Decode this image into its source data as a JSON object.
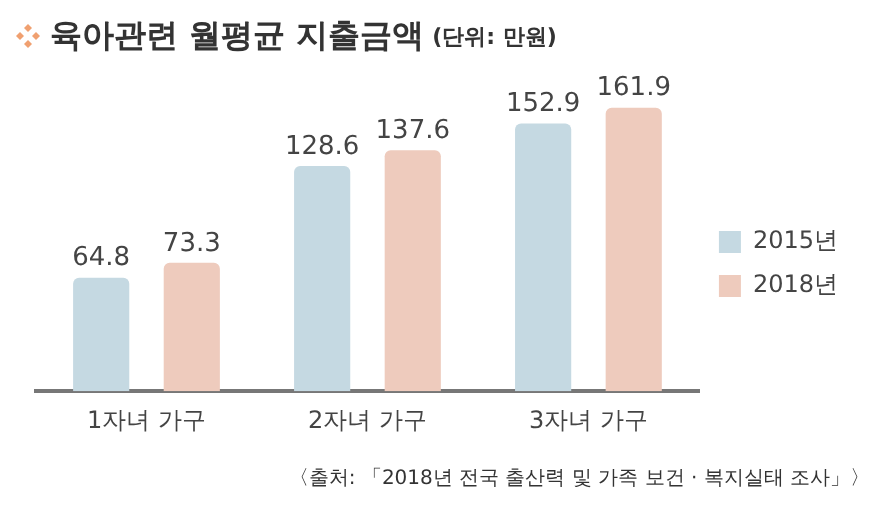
{
  "chart_data": {
    "type": "bar",
    "title": "육아관련 월평균 지출금액",
    "subtitle": "(단위: 만원)",
    "categories": [
      "1자녀 가구",
      "2자녀 가구",
      "3자녀 가구"
    ],
    "series": [
      {
        "name": "2015년",
        "color": "#c5d9e2",
        "values": [
          64.8,
          128.6,
          152.9
        ]
      },
      {
        "name": "2018년",
        "color": "#eecbbd",
        "values": [
          73.3,
          137.6,
          161.9
        ]
      }
    ],
    "data_labels": true,
    "legend": "right",
    "grid": false,
    "annotations": [
      "〈출처: 「2018년 전국 출산력 및 가족 보건 · 복지실태 조사」〉"
    ]
  }
}
